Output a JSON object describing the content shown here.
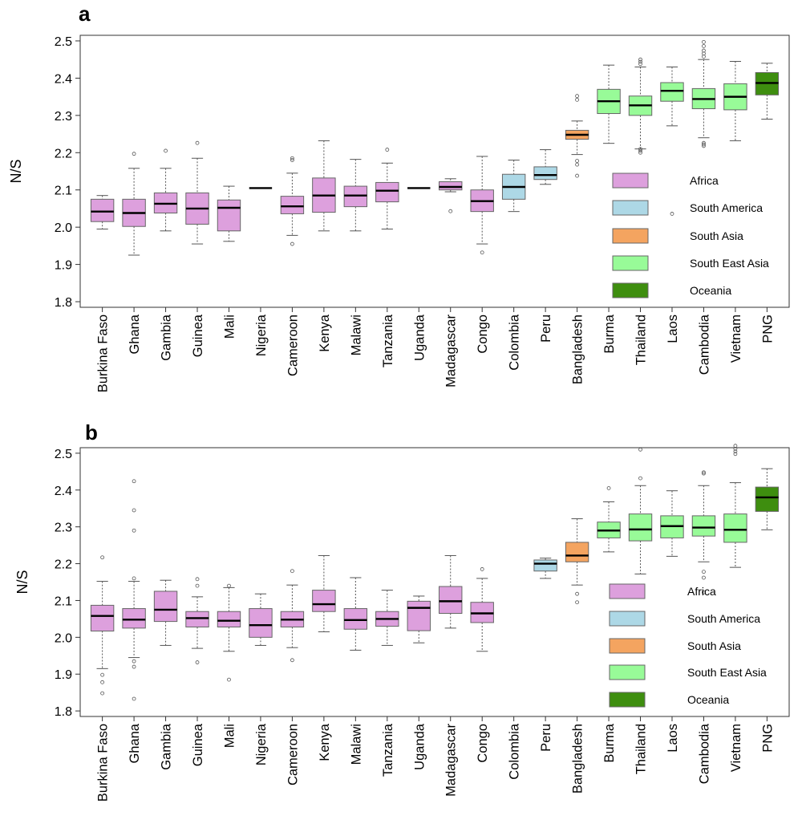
{
  "chart_data": [
    {
      "panel": "a",
      "type": "box",
      "ylabel": "N/S",
      "ylim": [
        1.8,
        2.5
      ],
      "yticks": [
        1.8,
        1.9,
        2.0,
        2.1,
        2.2,
        2.3,
        2.4,
        2.5
      ],
      "categories": [
        "Burkina Faso",
        "Ghana",
        "Gambia",
        "Guinea",
        "Mali",
        "Nigeria",
        "Cameroon",
        "Kenya",
        "Malawi",
        "Tanzania",
        "Uganda",
        "Madagascar",
        "Congo",
        "Colombia",
        "Peru",
        "Bangladesh",
        "Burma",
        "Thailand",
        "Laos",
        "Cambodia",
        "Vietnam",
        "PNG"
      ],
      "regions": [
        "Africa",
        "Africa",
        "Africa",
        "Africa",
        "Africa",
        "Africa",
        "Africa",
        "Africa",
        "Africa",
        "Africa",
        "Africa",
        "Africa",
        "Africa",
        "South America",
        "South America",
        "South Asia",
        "South East Asia",
        "South East Asia",
        "South East Asia",
        "South East Asia",
        "South East Asia",
        "Oceania"
      ],
      "boxes": [
        {
          "whislo": 1.995,
          "q1": 2.015,
          "med": 2.042,
          "q3": 2.075,
          "whishi": 2.085,
          "fliers": []
        },
        {
          "whislo": 1.925,
          "q1": 2.002,
          "med": 2.038,
          "q3": 2.075,
          "whishi": 2.158,
          "fliers": [
            2.197
          ]
        },
        {
          "whislo": 1.99,
          "q1": 2.038,
          "med": 2.063,
          "q3": 2.092,
          "whishi": 2.158,
          "fliers": [
            2.205
          ]
        },
        {
          "whislo": 1.955,
          "q1": 2.008,
          "med": 2.05,
          "q3": 2.092,
          "whishi": 2.185,
          "fliers": [
            2.226
          ]
        },
        {
          "whislo": 1.962,
          "q1": 1.99,
          "med": 2.052,
          "q3": 2.073,
          "whishi": 2.11,
          "fliers": []
        },
        {
          "whislo": 2.105,
          "q1": 2.105,
          "med": 2.105,
          "q3": 2.105,
          "whishi": 2.105,
          "fliers": []
        },
        {
          "whislo": 1.978,
          "q1": 2.036,
          "med": 2.056,
          "q3": 2.083,
          "whishi": 2.145,
          "fliers": [
            1.955,
            2.18,
            2.185
          ]
        },
        {
          "whislo": 1.99,
          "q1": 2.04,
          "med": 2.085,
          "q3": 2.132,
          "whishi": 2.232,
          "fliers": []
        },
        {
          "whislo": 1.99,
          "q1": 2.055,
          "med": 2.085,
          "q3": 2.11,
          "whishi": 2.182,
          "fliers": []
        },
        {
          "whislo": 1.995,
          "q1": 2.068,
          "med": 2.098,
          "q3": 2.12,
          "whishi": 2.172,
          "fliers": [
            2.208
          ]
        },
        {
          "whislo": 2.105,
          "q1": 2.105,
          "med": 2.105,
          "q3": 2.105,
          "whishi": 2.105,
          "fliers": []
        },
        {
          "whislo": 2.095,
          "q1": 2.1,
          "med": 2.108,
          "q3": 2.122,
          "whishi": 2.13,
          "fliers": [
            2.043
          ]
        },
        {
          "whislo": 1.955,
          "q1": 2.042,
          "med": 2.07,
          "q3": 2.1,
          "whishi": 2.19,
          "fliers": [
            1.932
          ]
        },
        {
          "whislo": 2.042,
          "q1": 2.075,
          "med": 2.108,
          "q3": 2.142,
          "whishi": 2.18,
          "fliers": []
        },
        {
          "whislo": 2.115,
          "q1": 2.128,
          "med": 2.14,
          "q3": 2.162,
          "whishi": 2.208,
          "fliers": []
        },
        {
          "whislo": 2.195,
          "q1": 2.236,
          "med": 2.248,
          "q3": 2.26,
          "whishi": 2.285,
          "fliers": [
            2.138,
            2.168,
            2.178,
            2.342,
            2.352
          ]
        },
        {
          "whislo": 2.225,
          "q1": 2.305,
          "med": 2.338,
          "q3": 2.37,
          "whishi": 2.435,
          "fliers": []
        },
        {
          "whislo": 2.21,
          "q1": 2.3,
          "med": 2.327,
          "q3": 2.352,
          "whishi": 2.43,
          "fliers": [
            2.2,
            2.205,
            2.21,
            2.438,
            2.444,
            2.45
          ]
        },
        {
          "whislo": 2.272,
          "q1": 2.338,
          "med": 2.366,
          "q3": 2.388,
          "whishi": 2.43,
          "fliers": [
            2.036
          ]
        },
        {
          "whislo": 2.24,
          "q1": 2.318,
          "med": 2.344,
          "q3": 2.372,
          "whishi": 2.45,
          "fliers": [
            2.218,
            2.222,
            2.226,
            2.458,
            2.466,
            2.474,
            2.486,
            2.497
          ]
        },
        {
          "whislo": 2.232,
          "q1": 2.315,
          "med": 2.35,
          "q3": 2.385,
          "whishi": 2.445,
          "fliers": []
        },
        {
          "whislo": 2.29,
          "q1": 2.355,
          "med": 2.387,
          "q3": 2.415,
          "whishi": 2.44,
          "fliers": []
        }
      ],
      "legend": {
        "placement": "bottom-right",
        "entries": [
          "Africa",
          "South America",
          "South Asia",
          "South East Asia",
          "Oceania"
        ]
      }
    },
    {
      "panel": "b",
      "type": "box",
      "ylabel": "N/S",
      "ylim": [
        1.8,
        2.5
      ],
      "yticks": [
        1.8,
        1.9,
        2.0,
        2.1,
        2.2,
        2.3,
        2.4,
        2.5
      ],
      "categories": [
        "Burkina Faso",
        "Ghana",
        "Gambia",
        "Guinea",
        "Mali",
        "Nigeria",
        "Cameroon",
        "Kenya",
        "Malawi",
        "Tanzania",
        "Uganda",
        "Madagascar",
        "Congo",
        "Colombia",
        "Peru",
        "Bangladesh",
        "Burma",
        "Thailand",
        "Laos",
        "Cambodia",
        "Vietnam",
        "PNG"
      ],
      "regions": [
        "Africa",
        "Africa",
        "Africa",
        "Africa",
        "Africa",
        "Africa",
        "Africa",
        "Africa",
        "Africa",
        "Africa",
        "Africa",
        "Africa",
        "Africa",
        "South America",
        "South America",
        "South Asia",
        "South East Asia",
        "South East Asia",
        "South East Asia",
        "South East Asia",
        "South East Asia",
        "Oceania"
      ],
      "boxes": [
        {
          "whislo": 1.915,
          "q1": 2.017,
          "med": 2.058,
          "q3": 2.087,
          "whishi": 2.152,
          "fliers": [
            1.848,
            1.878,
            1.898,
            2.217
          ]
        },
        {
          "whislo": 1.945,
          "q1": 2.025,
          "med": 2.048,
          "q3": 2.078,
          "whishi": 2.152,
          "fliers": [
            1.833,
            1.92,
            1.935,
            2.16,
            2.29,
            2.345,
            2.424
          ]
        },
        {
          "whislo": 1.978,
          "q1": 2.043,
          "med": 2.075,
          "q3": 2.125,
          "whishi": 2.155,
          "fliers": []
        },
        {
          "whislo": 1.97,
          "q1": 2.028,
          "med": 2.052,
          "q3": 2.07,
          "whishi": 2.11,
          "fliers": [
            1.932,
            2.14,
            2.158
          ]
        },
        {
          "whislo": 1.962,
          "q1": 2.028,
          "med": 2.045,
          "q3": 2.07,
          "whishi": 2.135,
          "fliers": [
            1.885,
            2.14
          ]
        },
        {
          "whislo": 1.978,
          "q1": 2.0,
          "med": 2.033,
          "q3": 2.078,
          "whishi": 2.118,
          "fliers": []
        },
        {
          "whislo": 1.972,
          "q1": 2.028,
          "med": 2.048,
          "q3": 2.07,
          "whishi": 2.142,
          "fliers": [
            1.938,
            2.18
          ]
        },
        {
          "whislo": 2.015,
          "q1": 2.07,
          "med": 2.09,
          "q3": 2.128,
          "whishi": 2.222,
          "fliers": []
        },
        {
          "whislo": 1.965,
          "q1": 2.022,
          "med": 2.047,
          "q3": 2.078,
          "whishi": 2.162,
          "fliers": []
        },
        {
          "whislo": 1.978,
          "q1": 2.03,
          "med": 2.05,
          "q3": 2.07,
          "whishi": 2.128,
          "fliers": []
        },
        {
          "whislo": 1.985,
          "q1": 2.018,
          "med": 2.08,
          "q3": 2.098,
          "whishi": 2.112,
          "fliers": []
        },
        {
          "whislo": 2.025,
          "q1": 2.065,
          "med": 2.098,
          "q3": 2.138,
          "whishi": 2.222,
          "fliers": []
        },
        {
          "whislo": 1.962,
          "q1": 2.04,
          "med": 2.065,
          "q3": 2.095,
          "whishi": 2.16,
          "fliers": [
            2.185
          ]
        },
        null,
        {
          "whislo": 2.16,
          "q1": 2.18,
          "med": 2.2,
          "q3": 2.21,
          "whishi": 2.215,
          "fliers": []
        },
        {
          "whislo": 2.142,
          "q1": 2.205,
          "med": 2.222,
          "q3": 2.258,
          "whishi": 2.322,
          "fliers": [
            2.095,
            2.118
          ]
        },
        {
          "whislo": 2.232,
          "q1": 2.27,
          "med": 2.29,
          "q3": 2.313,
          "whishi": 2.368,
          "fliers": [
            2.405
          ]
        },
        {
          "whislo": 2.172,
          "q1": 2.262,
          "med": 2.293,
          "q3": 2.335,
          "whishi": 2.412,
          "fliers": [
            2.432,
            2.51
          ]
        },
        {
          "whislo": 2.22,
          "q1": 2.27,
          "med": 2.302,
          "q3": 2.33,
          "whishi": 2.398,
          "fliers": []
        },
        {
          "whislo": 2.205,
          "q1": 2.275,
          "med": 2.298,
          "q3": 2.33,
          "whishi": 2.412,
          "fliers": [
            2.122,
            2.162,
            2.178,
            2.445,
            2.448
          ]
        },
        {
          "whislo": 2.19,
          "q1": 2.258,
          "med": 2.292,
          "q3": 2.335,
          "whishi": 2.42,
          "fliers": [
            2.498,
            2.505,
            2.512,
            2.52
          ]
        },
        {
          "whislo": 2.292,
          "q1": 2.342,
          "med": 2.38,
          "q3": 2.408,
          "whishi": 2.458,
          "fliers": []
        }
      ],
      "legend": {
        "placement": "bottom-right",
        "entries": [
          "Africa",
          "South America",
          "South Asia",
          "South East Asia",
          "Oceania"
        ]
      }
    }
  ],
  "region_colors": {
    "Africa": "#DDA0DD",
    "South America": "#ADD8E6",
    "South Asia": "#F4A460",
    "South East Asia": "#98FB98",
    "Oceania": "#3E8E0F"
  }
}
